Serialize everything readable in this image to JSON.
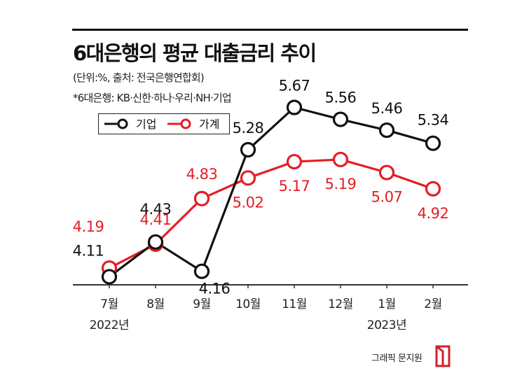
{
  "header": {
    "title": "6대은행의 평균 대출금리 추이",
    "subtitle": "(단위:%, 출처: 전국은행연합회)",
    "note": "*6대은행: KB·신한·하나·우리·NH·기업"
  },
  "footer": {
    "credit": "그래픽 문지원"
  },
  "colors": {
    "corporate": "#111111",
    "household": "#e31e24",
    "logo": "#d0202e"
  },
  "chart_data": {
    "type": "line",
    "categories": [
      "7월",
      "8월",
      "9월",
      "10월",
      "11월",
      "12월",
      "1월",
      "2월"
    ],
    "year_labels": [
      {
        "category": "7월",
        "text": "2022년"
      },
      {
        "category": "1월",
        "text": "2023년"
      }
    ],
    "series": [
      {
        "name": "기업",
        "values": [
          4.11,
          4.43,
          4.16,
          5.28,
          5.67,
          5.56,
          5.46,
          5.34
        ]
      },
      {
        "name": "가계",
        "values": [
          4.19,
          4.41,
          4.83,
          5.02,
          5.17,
          5.19,
          5.07,
          4.92
        ]
      }
    ],
    "legend": "top-left",
    "grid": false
  }
}
